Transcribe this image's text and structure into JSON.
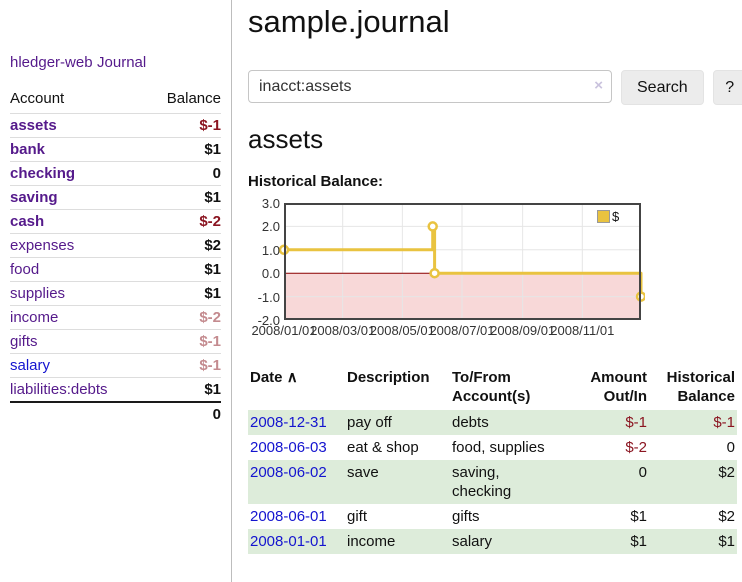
{
  "colors": {
    "link_purple": "#551a8b",
    "link_blue": "#1414cf",
    "negative_strong": "#8b1521",
    "negative_soft": "#c48b8f",
    "row_stripe_green": "#ddecda",
    "series_yellow": "#e9c340",
    "negative_region_pink": "#f8d8d8",
    "zero_line_red": "#8b0000"
  },
  "sidebar": {
    "brand": "hledger-web",
    "journal_link": "Journal",
    "accounts_table": {
      "headers": {
        "account": "Account",
        "balance": "Balance"
      },
      "rows": [
        {
          "name": "assets",
          "indent": 1,
          "bold": true,
          "balance": "$-1",
          "tone": "neg-strong",
          "link": "purple"
        },
        {
          "name": "bank",
          "indent": 2,
          "bold": true,
          "balance": "$1",
          "tone": "pos",
          "link": "purple"
        },
        {
          "name": "checking",
          "indent": 3,
          "bold": true,
          "balance": "0",
          "tone": "pos",
          "link": "purple"
        },
        {
          "name": "saving",
          "indent": 3,
          "bold": true,
          "balance": "$1",
          "tone": "pos",
          "link": "purple"
        },
        {
          "name": "cash",
          "indent": 2,
          "bold": true,
          "balance": "$-2",
          "tone": "neg-strong",
          "link": "purple"
        },
        {
          "name": "expenses",
          "indent": 1,
          "bold": false,
          "balance": "$2",
          "tone": "pos",
          "link": "purple"
        },
        {
          "name": "food",
          "indent": 2,
          "bold": false,
          "balance": "$1",
          "tone": "pos",
          "link": "purple"
        },
        {
          "name": "supplies",
          "indent": 2,
          "bold": false,
          "balance": "$1",
          "tone": "pos",
          "link": "purple"
        },
        {
          "name": "income",
          "indent": 1,
          "bold": false,
          "balance": "$-2",
          "tone": "neg-soft",
          "link": "purple"
        },
        {
          "name": "gifts",
          "indent": 2,
          "bold": false,
          "balance": "$-1",
          "tone": "neg-soft",
          "link": "purple"
        },
        {
          "name": "salary",
          "indent": 2,
          "bold": false,
          "balance": "$-1",
          "tone": "neg-soft",
          "link": "blue"
        },
        {
          "name": "liabilities:debts",
          "indent": 1,
          "bold": false,
          "balance": "$1",
          "tone": "pos",
          "link": "purple"
        }
      ],
      "total": "0"
    }
  },
  "main": {
    "title": "sample.journal",
    "search": {
      "value": "inacct:assets",
      "clear_icon": "×",
      "search_button": "Search",
      "help_button": "?"
    },
    "account_heading": "assets",
    "chart_heading": "Historical Balance:",
    "register": {
      "headers": [
        {
          "lines": [
            "Date"
          ],
          "sort_indicator": "∧",
          "align": "left"
        },
        {
          "lines": [
            "Description"
          ],
          "align": "left"
        },
        {
          "lines": [
            "To/From",
            "Account(s)"
          ],
          "align": "left"
        },
        {
          "lines": [
            "Amount",
            "Out/In"
          ],
          "align": "right"
        },
        {
          "lines": [
            "Historical",
            "Balance"
          ],
          "align": "right"
        }
      ],
      "rows": [
        {
          "date": "2008-12-31",
          "description": "pay off",
          "accounts": "debts",
          "amount": "$-1",
          "balance": "$-1"
        },
        {
          "date": "2008-06-03",
          "description": "eat & shop",
          "accounts": "food, supplies",
          "amount": "$-2",
          "balance": "0"
        },
        {
          "date": "2008-06-02",
          "description": "save",
          "accounts": "saving,\nchecking",
          "amount": "0",
          "balance": "$2"
        },
        {
          "date": "2008-06-01",
          "description": "gift",
          "accounts": "gifts",
          "amount": "$1",
          "balance": "$2"
        },
        {
          "date": "2008-01-01",
          "description": "income",
          "accounts": "salary",
          "amount": "$1",
          "balance": "$1"
        }
      ]
    }
  },
  "chart_data": {
    "type": "line",
    "title": "Historical Balance:",
    "step": true,
    "series": [
      {
        "name": "$",
        "color": "#e9c340",
        "points": [
          {
            "date": "2008-01-01",
            "value": 1
          },
          {
            "date": "2008-06-01",
            "value": 2
          },
          {
            "date": "2008-06-03",
            "value": 0
          },
          {
            "date": "2008-12-31",
            "value": -1
          }
        ]
      }
    ],
    "x_range": [
      "2008-01-01",
      "2008-12-31"
    ],
    "x_ticks": [
      {
        "date": "2008-01-01",
        "label": "2008/01/01"
      },
      {
        "date": "2008-03-01",
        "label": "2008/03/01"
      },
      {
        "date": "2008-05-01",
        "label": "2008/05/01"
      },
      {
        "date": "2008-07-01",
        "label": "2008/07/01"
      },
      {
        "date": "2008-09-01",
        "label": "2008/09/01"
      },
      {
        "date": "2008-11-01",
        "label": "2008/11/01"
      }
    ],
    "ylim": [
      -2,
      3
    ],
    "y_ticks": [
      {
        "value": 3,
        "label": "3.0"
      },
      {
        "value": 2,
        "label": "2.0"
      },
      {
        "value": 1,
        "label": "1.0"
      },
      {
        "value": 0,
        "label": "0.0"
      },
      {
        "value": -1,
        "label": "-1.0"
      },
      {
        "value": -2,
        "label": "-2.0"
      }
    ],
    "grid": true,
    "grid_color": "#e6e6e6",
    "border_color": "#444444",
    "negative_region_fill": "#f8d8d8",
    "zero_line_color": "#8b0000",
    "legend": {
      "position": "top-right",
      "entries": [
        "$"
      ]
    }
  }
}
